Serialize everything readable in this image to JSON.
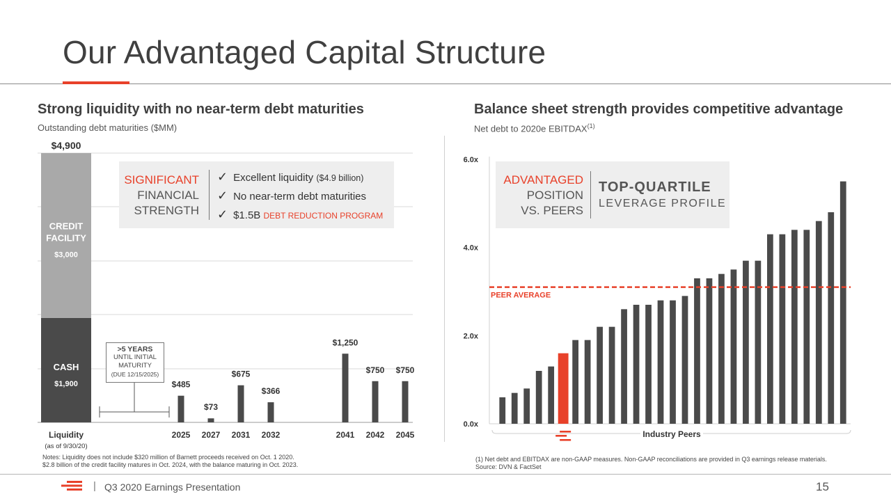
{
  "slide": {
    "title": "Our Advantaged Capital Structure",
    "footer": "Q3 2020 Earnings Presentation",
    "page_number": "15",
    "footer_separator": "|"
  },
  "left_panel": {
    "heading": "Strong liquidity with no near-term debt maturities",
    "subheading": "Outstanding debt maturities ($MM)",
    "callout": {
      "label_line1": "SIGNIFICANT",
      "label_line2": "FINANCIAL",
      "label_line3": "STRENGTH",
      "items": [
        {
          "text": "Excellent liquidity",
          "detail": "($4.9 billion)"
        },
        {
          "text": "No near-term debt maturities",
          "detail": ""
        },
        {
          "text": "$1.5B",
          "detail": "DEBT REDUCTION PROGRAM"
        }
      ]
    },
    "maturity_note": {
      "line1": ">5 YEARS",
      "line2": "UNTIL INITIAL",
      "line3": "MATURITY",
      "line4": "(DUE 12/15/2025)"
    },
    "notes_line1": "Notes: Liquidity does not include $320 million of Barnett proceeds received on Oct. 1 2020.",
    "notes_line2": "$2.8 billion of the credit facility matures in Oct. 2024, with the balance maturing in Oct. 2023."
  },
  "right_panel": {
    "heading": "Balance sheet strength provides competitive advantage",
    "subheading": "Net debt to 2020e EBITDAX",
    "subheading_sup": "(1)",
    "callout": {
      "label_line1": "ADVANTAGED",
      "label_line2": "POSITION",
      "label_line3": "VS. PEERS",
      "headline": "TOP-QUARTILE",
      "subline": "LEVERAGE PROFILE"
    },
    "footnote_line1": "(1) Net debt and EBITDAX are non-GAAP measures. Non-GAAP reconciliations are provided in Q3 earnings release materials.",
    "footnote_line2": "Source: DVN & FactSet"
  },
  "colors": {
    "accent": "#e8412a",
    "dark_bar": "#4a4a4a",
    "credit_bar": "#a9a9a9",
    "callout_bg": "#eeeeee"
  },
  "chart_data": [
    {
      "type": "bar",
      "title": "Outstanding debt maturities ($MM)",
      "liquidity": {
        "label": "Liquidity",
        "sublabel": "(as of 9/30/20)",
        "total_label": "$4,900",
        "total": 4900,
        "segments": [
          {
            "name": "CASH",
            "value": 1900,
            "value_label": "$1,900",
            "color": "#4a4a4a"
          },
          {
            "name": "CREDIT FACILITY",
            "value": 3000,
            "value_label": "$3,000",
            "color": "#a9a9a9"
          }
        ]
      },
      "categories": [
        "2025",
        "2027",
        "2031",
        "2032",
        "2041",
        "2042",
        "2045"
      ],
      "values": [
        485,
        73,
        675,
        366,
        1250,
        750,
        750
      ],
      "value_labels": [
        "$485",
        "$73",
        "$675",
        "$366",
        "$1,250",
        "$750",
        "$750"
      ],
      "ylim": [
        0,
        4900
      ],
      "grid": true
    },
    {
      "type": "bar",
      "title": "Net debt to 2020e EBITDAX",
      "xlabel": "Industry Peers",
      "yticks": [
        "0.0x",
        "2.0x",
        "4.0x",
        "6.0x"
      ],
      "ytick_values": [
        0,
        2,
        4,
        6
      ],
      "ylim": [
        0,
        6
      ],
      "values": [
        0.6,
        0.7,
        0.8,
        1.2,
        1.3,
        1.6,
        1.9,
        1.9,
        2.2,
        2.2,
        2.6,
        2.7,
        2.7,
        2.8,
        2.8,
        2.9,
        3.3,
        3.3,
        3.4,
        3.5,
        3.7,
        3.7,
        4.3,
        4.3,
        4.4,
        4.4,
        4.6,
        4.8,
        5.5
      ],
      "highlight_index": 5,
      "reference_line": {
        "label": "PEER AVERAGE",
        "value": 3.1
      },
      "grid": false
    }
  ]
}
